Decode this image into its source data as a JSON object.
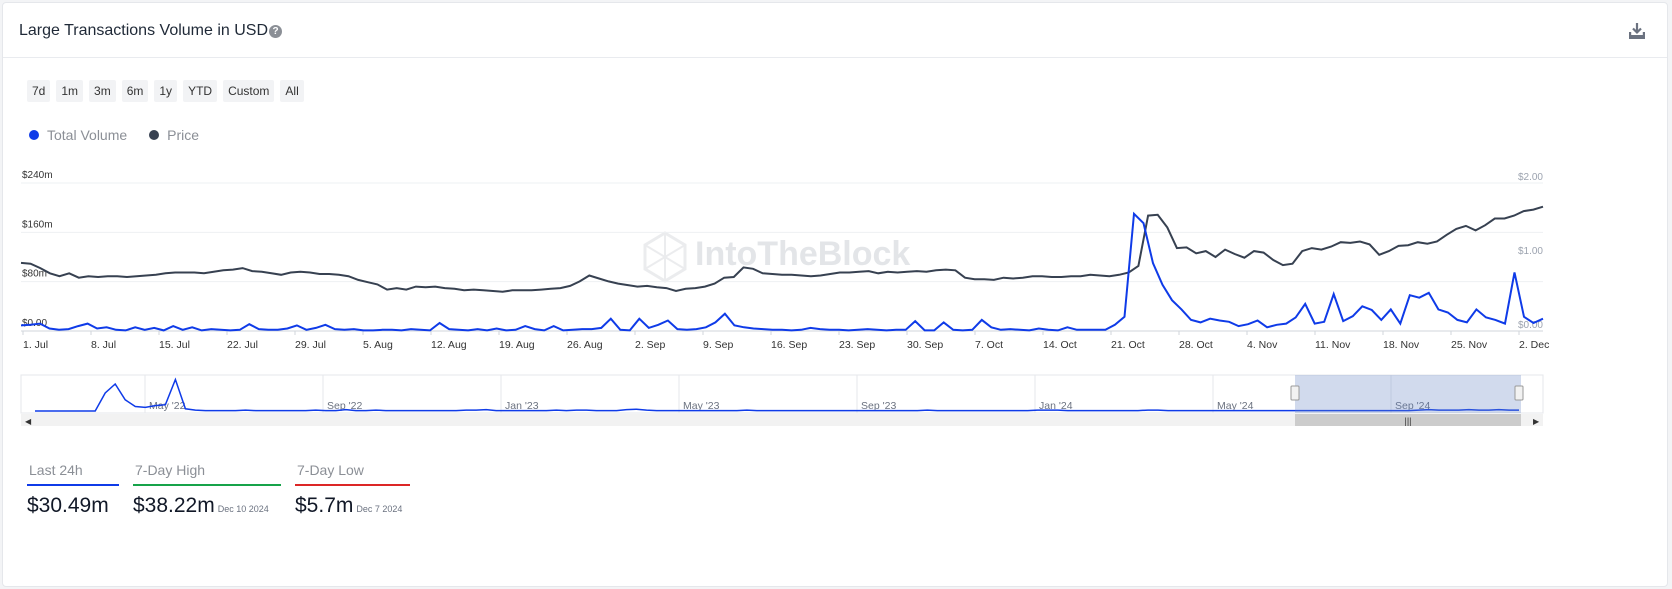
{
  "header": {
    "title": "Large Transactions Volume in USD",
    "help_icon": "question-circle-icon",
    "download_icon": "download-icon"
  },
  "range_buttons": [
    "7d",
    "1m",
    "3m",
    "6m",
    "1y",
    "YTD",
    "Custom",
    "All"
  ],
  "legend": [
    {
      "label": "Total Volume",
      "color": "#0f3be8"
    },
    {
      "label": "Price",
      "color": "#374151"
    }
  ],
  "watermark": "IntoTheBlock",
  "chart_data": {
    "type": "line",
    "title": "",
    "x_tick_labels": [
      "1. Jul",
      "8. Jul",
      "15. Jul",
      "22. Jul",
      "29. Jul",
      "5. Aug",
      "12. Aug",
      "19. Aug",
      "26. Aug",
      "2. Sep",
      "9. Sep",
      "16. Sep",
      "23. Sep",
      "30. Sep",
      "7. Oct",
      "14. Oct",
      "21. Oct",
      "28. Oct",
      "4. Nov",
      "11. Nov",
      "18. Nov",
      "25. Nov",
      "2. Dec"
    ],
    "y_left_ticks": [
      "$0.00",
      "$80m",
      "$160m",
      "$240m"
    ],
    "y_left_range": [
      0,
      240
    ],
    "y_left_unit": "USD millions",
    "y_right_ticks": [
      "$0.00",
      "$1.00",
      "$2.00"
    ],
    "y_right_range": [
      0,
      2
    ],
    "series": [
      {
        "name": "Total Volume",
        "axis": "left",
        "color": "#0f3be8",
        "values": [
          9,
          10,
          12,
          4,
          2,
          3,
          8,
          12,
          4,
          6,
          2,
          1,
          6,
          2,
          5,
          1,
          8,
          2,
          6,
          1,
          3,
          2,
          1,
          2,
          11,
          3,
          2,
          2,
          4,
          9,
          2,
          5,
          10,
          3,
          2,
          3,
          1,
          1,
          2,
          2,
          1,
          3,
          2,
          1,
          13,
          3,
          2,
          1,
          3,
          1,
          4,
          1,
          2,
          8,
          3,
          1,
          8,
          1,
          2,
          3,
          3,
          5,
          20,
          2,
          1,
          20,
          5,
          10,
          17,
          3,
          2,
          3,
          6,
          14,
          28,
          9,
          6,
          4,
          3,
          2,
          2,
          1,
          2,
          5,
          3,
          2,
          2,
          1,
          2,
          3,
          2,
          1,
          2,
          2,
          16,
          1,
          1,
          14,
          2,
          1,
          2,
          18,
          6,
          2,
          3,
          2,
          1,
          4,
          2,
          1,
          6,
          2,
          2,
          2,
          2,
          10,
          23,
          190,
          175,
          110,
          75,
          50,
          35,
          18,
          14,
          20,
          17,
          15,
          8,
          11,
          17,
          6,
          10,
          12,
          22,
          44,
          12,
          15,
          60,
          16,
          24,
          40,
          34,
          18,
          35,
          12,
          58,
          54,
          62,
          35,
          30,
          18,
          14,
          35,
          22,
          18,
          12,
          95,
          23,
          13,
          20
        ],
        "last_24h": "$30.49m",
        "high_7d": "$38.22m",
        "low_7d": "$5.7m"
      },
      {
        "name": "Price",
        "axis": "right",
        "color": "#374151",
        "values": [
          0.92,
          0.91,
          0.85,
          0.78,
          0.74,
          0.78,
          0.72,
          0.74,
          0.73,
          0.74,
          0.74,
          0.73,
          0.74,
          0.75,
          0.76,
          0.78,
          0.79,
          0.79,
          0.79,
          0.78,
          0.8,
          0.82,
          0.83,
          0.85,
          0.81,
          0.8,
          0.78,
          0.76,
          0.79,
          0.8,
          0.79,
          0.77,
          0.77,
          0.76,
          0.74,
          0.69,
          0.66,
          0.63,
          0.56,
          0.58,
          0.56,
          0.6,
          0.59,
          0.6,
          0.58,
          0.57,
          0.55,
          0.56,
          0.55,
          0.54,
          0.53,
          0.55,
          0.55,
          0.55,
          0.56,
          0.57,
          0.58,
          0.61,
          0.67,
          0.75,
          0.71,
          0.67,
          0.64,
          0.62,
          0.6,
          0.61,
          0.59,
          0.58,
          0.54,
          0.57,
          0.58,
          0.6,
          0.64,
          0.72,
          0.73,
          0.86,
          0.84,
          0.78,
          0.77,
          0.76,
          0.76,
          0.75,
          0.74,
          0.75,
          0.77,
          0.79,
          0.79,
          0.8,
          0.81,
          0.78,
          0.8,
          0.79,
          0.8,
          0.81,
          0.8,
          0.82,
          0.83,
          0.82,
          0.72,
          0.7,
          0.7,
          0.69,
          0.72,
          0.71,
          0.72,
          0.74,
          0.74,
          0.73,
          0.73,
          0.74,
          0.74,
          0.76,
          0.75,
          0.74,
          0.76,
          0.79,
          0.88,
          1.56,
          1.57,
          1.4,
          1.12,
          1.13,
          1.05,
          1.08,
          1.0,
          1.1,
          1.04,
          0.99,
          1.08,
          1.06,
          0.96,
          0.89,
          0.91,
          1.08,
          1.12,
          1.1,
          1.14,
          1.2,
          1.19,
          1.21,
          1.17,
          1.03,
          1.08,
          1.15,
          1.16,
          1.2,
          1.18,
          1.21,
          1.3,
          1.38,
          1.42,
          1.36,
          1.43,
          1.52,
          1.52,
          1.56,
          1.62,
          1.64,
          1.68
        ]
      }
    ],
    "navigator": {
      "tick_labels": [
        "May '22",
        "Sep '22",
        "Jan '23",
        "May '23",
        "Sep '23",
        "Jan '24",
        "May '24",
        "Sep '24"
      ],
      "values": [
        0,
        0,
        0,
        0,
        0,
        0,
        0,
        40,
        60,
        25,
        10,
        8,
        12,
        14,
        70,
        5,
        2,
        1,
        1,
        1,
        1,
        2,
        1,
        1,
        1,
        1,
        1,
        1,
        2,
        1,
        1,
        3,
        1,
        1,
        2,
        1,
        1,
        1,
        1,
        1,
        1,
        1,
        1,
        2,
        2,
        3,
        1,
        1,
        1,
        1,
        1,
        1,
        2,
        1,
        2,
        2,
        1,
        1,
        1,
        3,
        4,
        2,
        1,
        1,
        1,
        1,
        1,
        1,
        1,
        1,
        1,
        2,
        1,
        1,
        1,
        1,
        1,
        1,
        1,
        1,
        1,
        1,
        1,
        1,
        1,
        1,
        1,
        1,
        1,
        2,
        1,
        1,
        1,
        1,
        1,
        1,
        1,
        1,
        1,
        1,
        2,
        2,
        2,
        1,
        1,
        1,
        1,
        1,
        1,
        1,
        1,
        2,
        2,
        1,
        1,
        1,
        1,
        1,
        1,
        1,
        1,
        1,
        1,
        1,
        1,
        1,
        1,
        1,
        1,
        1,
        1,
        1,
        1,
        1,
        1,
        1,
        1,
        1,
        2,
        3,
        2,
        2,
        2,
        3,
        2,
        2,
        3,
        2,
        2
      ]
    }
  },
  "stats": [
    {
      "label": "Last 24h",
      "value": "$30.49m",
      "date": "",
      "color": "#0f3be8"
    },
    {
      "label": "7-Day High",
      "value": "$38.22m",
      "date": "Dec 10 2024",
      "color": "#16a34a"
    },
    {
      "label": "7-Day Low",
      "value": "$5.7m",
      "date": "Dec 7 2024",
      "color": "#dc2626"
    }
  ]
}
